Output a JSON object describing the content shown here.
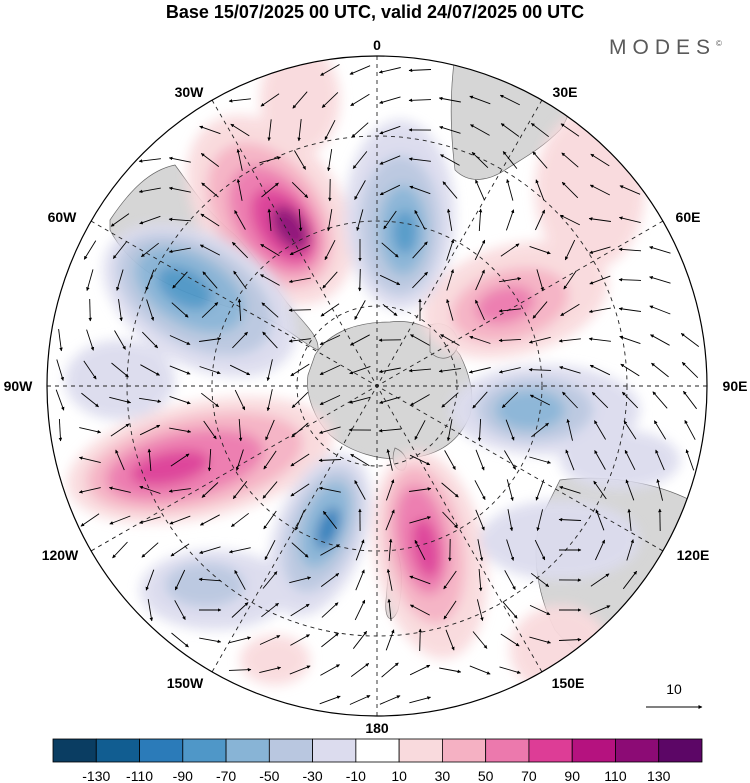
{
  "title": "Base 15/07/2025 00 UTC, valid 24/07/2025 00 UTC",
  "brand": "MODES",
  "brand_mark": "©",
  "longitude_labels": {
    "n": "0",
    "ne": "30E",
    "e60": "60E",
    "e": "90E",
    "e120": "120E",
    "e150": "150E",
    "s": "180",
    "w150": "150W",
    "w120": "120W",
    "w": "90W",
    "w60": "60W",
    "w30": "30W"
  },
  "vector_ref": "10",
  "colorbar": {
    "colors": [
      "#0a3d62",
      "#115d91",
      "#2b7bb9",
      "#4f97c8",
      "#88b4d6",
      "#b9c7e0",
      "#dcdcee",
      "#ffffff",
      "#f9dadd",
      "#f5b1c3",
      "#ec79ad",
      "#dd3d96",
      "#b5127f",
      "#8c0b75",
      "#5c0666"
    ],
    "labels": [
      "-130",
      "-110",
      "-90",
      "-70",
      "-50",
      "-30",
      "-10",
      "10",
      "30",
      "50",
      "70",
      "90",
      "110",
      "130"
    ]
  }
}
